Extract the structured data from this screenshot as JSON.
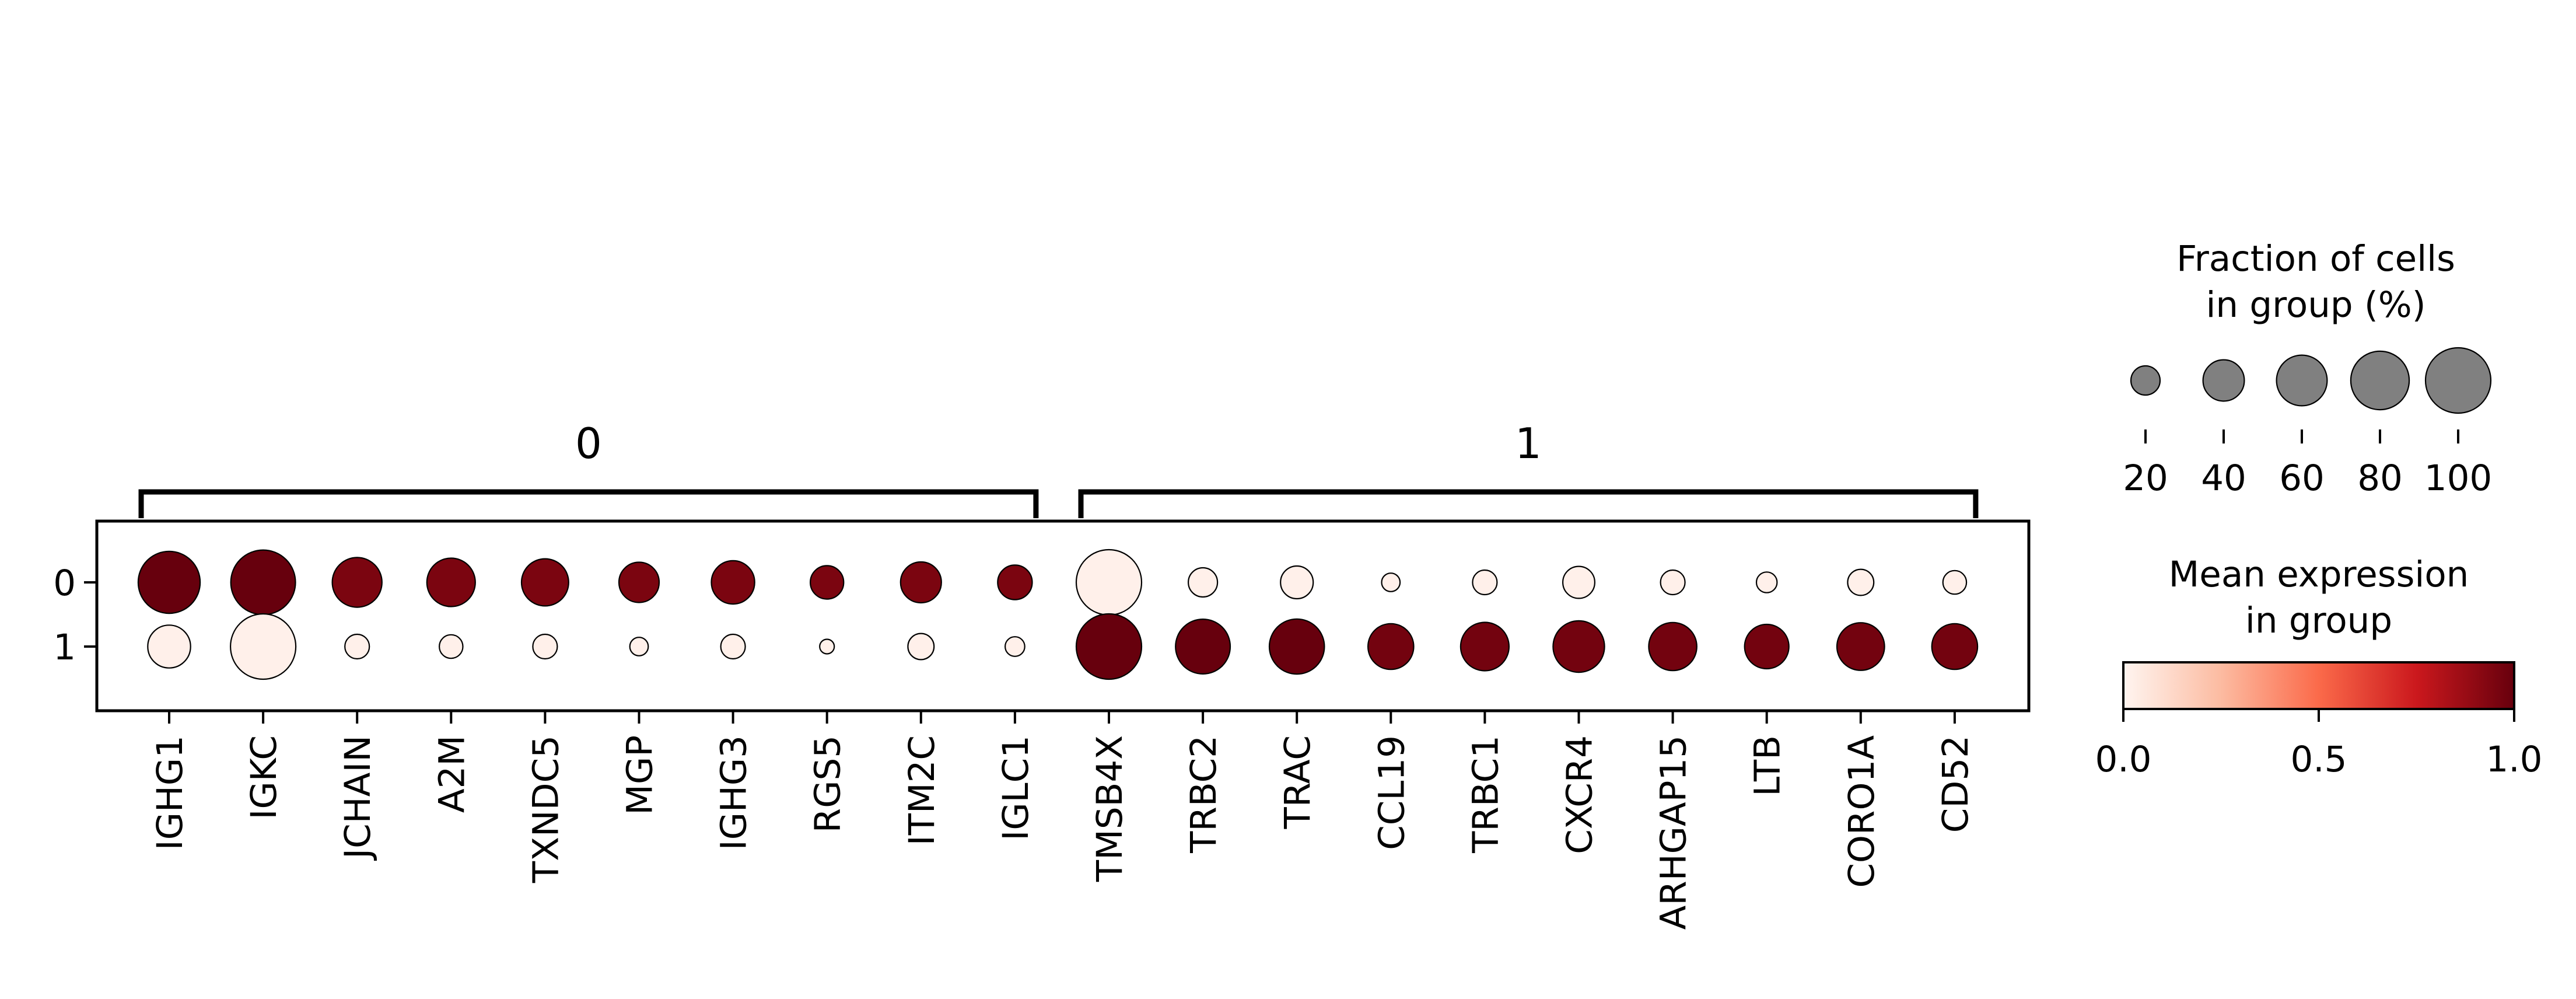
{
  "chart_data": {
    "type": "dotplot",
    "genes": [
      "IGHG1",
      "IGKC",
      "JCHAIN",
      "A2M",
      "TXNDC5",
      "MGP",
      "IGHG3",
      "RGS5",
      "ITM2C",
      "IGLC1",
      "TMSB4X",
      "TRBC2",
      "TRAC",
      "CCL19",
      "TRBC1",
      "CXCR4",
      "ARHGAP15",
      "LTB",
      "CORO1A",
      "CD52"
    ],
    "groups": [
      "0",
      "1"
    ],
    "gene_groups": [
      {
        "label": "0",
        "genes": [
          "IGHG1",
          "IGKC",
          "JCHAIN",
          "A2M",
          "TXNDC5",
          "MGP",
          "IGHG3",
          "RGS5",
          "ITM2C",
          "IGLC1"
        ]
      },
      {
        "label": "1",
        "genes": [
          "TMSB4X",
          "TRBC2",
          "TRAC",
          "CCL19",
          "TRBC1",
          "CXCR4",
          "ARHGAP15",
          "LTB",
          "CORO1A",
          "CD52"
        ]
      }
    ],
    "fraction": [
      [
        90,
        98,
        58,
        55,
        52,
        38,
        44,
        26,
        39,
        28,
        100,
        20,
        25,
        8,
        14,
        24,
        14,
        10,
        16,
        13
      ],
      [
        43,
        100,
        14,
        13,
        14,
        8,
        14,
        5,
        16,
        9,
        100,
        70,
        71,
        49,
        55,
        62,
        54,
        46,
        53,
        49
      ]
    ],
    "mean_expression": [
      [
        1.0,
        1.0,
        0.95,
        0.95,
        0.95,
        0.95,
        0.95,
        0.95,
        0.95,
        0.95,
        0.02,
        0.02,
        0.02,
        0.02,
        0.02,
        0.02,
        0.02,
        0.02,
        0.02,
        0.02
      ],
      [
        0.02,
        0.02,
        0.02,
        0.02,
        0.02,
        0.02,
        0.02,
        0.02,
        0.02,
        0.02,
        1.0,
        1.0,
        1.0,
        0.97,
        0.97,
        0.97,
        0.97,
        0.97,
        0.97,
        0.97
      ]
    ],
    "size_legend": {
      "title_line1": "Fraction of cells",
      "title_line2": "in group (%)",
      "values": [
        20,
        40,
        60,
        80,
        100
      ],
      "labels": [
        "20",
        "40",
        "60",
        "80",
        "100"
      ],
      "color": "#808080"
    },
    "color_legend": {
      "title_line1": "Mean expression",
      "title_line2": "in group",
      "range": [
        0.0,
        1.0
      ],
      "ticks": [
        "0.0",
        "0.5",
        "1.0"
      ],
      "colormap": "Reds",
      "color_stops": [
        "#fff5f0",
        "#fcbba1",
        "#fb6a4a",
        "#cb181d",
        "#67000d"
      ]
    }
  }
}
